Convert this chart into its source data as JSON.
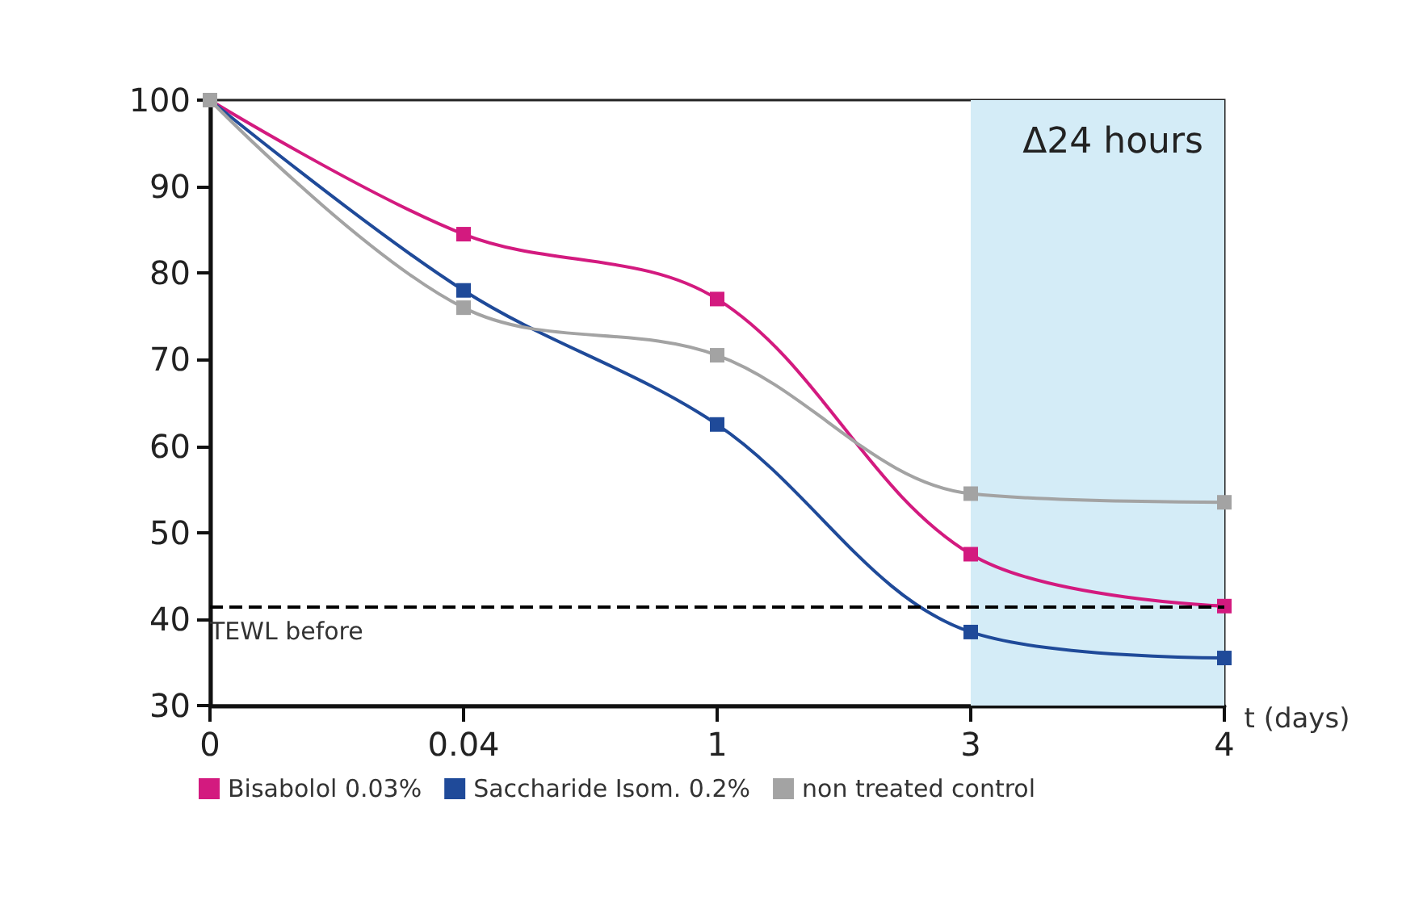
{
  "chart_data": {
    "type": "line",
    "xlabel": "t (days)",
    "categories": [
      "0",
      "0.04",
      "1",
      "3",
      "4"
    ],
    "series": [
      {
        "name": "Bisabolol 0.03%",
        "color": "#d31a7f",
        "values": [
          100,
          84.5,
          77,
          47.5,
          41.5
        ]
      },
      {
        "name": "Saccharide Isom. 0.2%",
        "color": "#1f4a99",
        "values": [
          100,
          78,
          62.5,
          38.5,
          35.5
        ]
      },
      {
        "name": "non treated control",
        "color": "#a3a3a3",
        "values": [
          100,
          76,
          70.5,
          54.5,
          53.5
        ]
      }
    ],
    "ylim": [
      30,
      100
    ],
    "yticks": [
      30,
      40,
      50,
      60,
      70,
      80,
      90,
      100
    ],
    "grid": false,
    "legend": "bottom left",
    "marker": "square",
    "line_style": "solid",
    "ref_lines": [
      {
        "axis": "y",
        "value": 41.5,
        "label": "TEWL before",
        "color": "#000000",
        "line_style": "dashed"
      }
    ],
    "bands": [
      {
        "axis": "x",
        "from": "3",
        "to": "4",
        "label": "Δ24 hours",
        "color": "#d4ecf7"
      }
    ]
  }
}
